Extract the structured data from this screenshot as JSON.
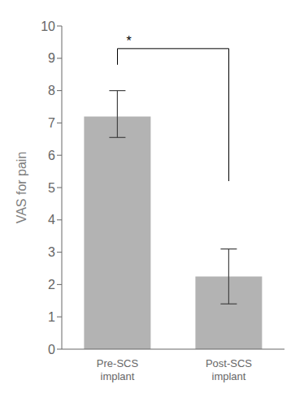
{
  "chart_data": {
    "type": "bar",
    "categories": [
      "Pre-SCS\nimplant",
      "Post-SCS\nimplant"
    ],
    "values": [
      7.2,
      2.25
    ],
    "errors_up": [
      0.8,
      0.85
    ],
    "errors_down": [
      0.65,
      0.85
    ],
    "color": "#b3b3b3",
    "ylabel": "VAS for pain",
    "ylim": [
      0,
      10
    ],
    "yticks": [
      0,
      1,
      2,
      3,
      4,
      5,
      6,
      7,
      8,
      9,
      10
    ],
    "grid": false,
    "annotations": [
      {
        "text": "*",
        "bracket": {
          "y": 9.3,
          "left_y": 8.8,
          "right_y": 5.2
        }
      }
    ]
  }
}
